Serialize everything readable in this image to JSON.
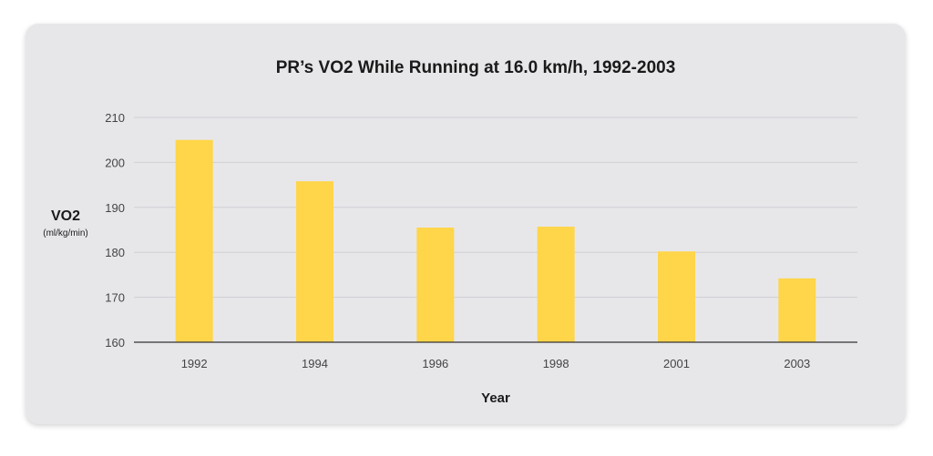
{
  "chart_data": {
    "type": "bar",
    "title": "PR’s VO2 While Running at 16.0 km/h, 1992-2003",
    "xlabel": "Year",
    "ylabel": "VO2",
    "ylabel_unit": "(ml/kg/min)",
    "categories": [
      "1992",
      "1994",
      "1996",
      "1998",
      "2001",
      "2003"
    ],
    "values": [
      205,
      195.8,
      185.5,
      185.7,
      180.2,
      174.2
    ],
    "ylim": [
      160,
      210
    ],
    "yticks": [
      "160",
      "170",
      "180",
      "190",
      "200",
      "210"
    ],
    "grid": true,
    "bar_color": "#ffd54a",
    "background_color": "#e7e7ea"
  }
}
